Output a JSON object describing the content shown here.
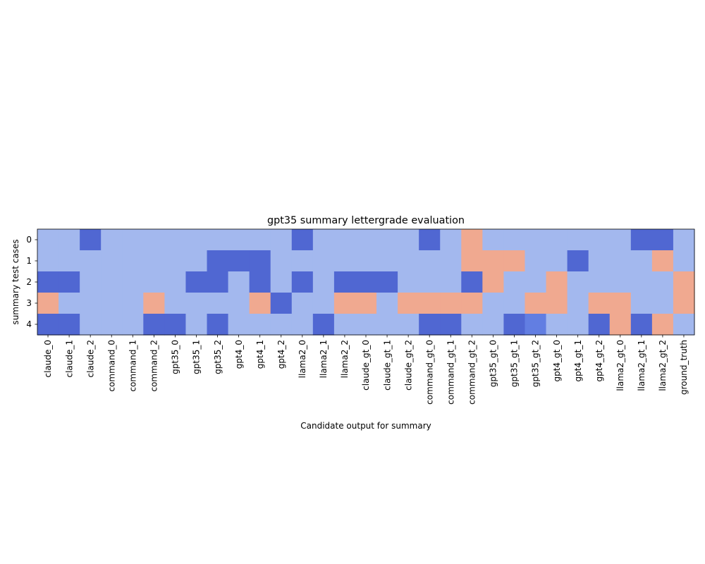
{
  "chart_data": {
    "type": "heatmap",
    "title": "gpt35 summary lettergrade evaluation",
    "xlabel": "Candidate output for summary",
    "ylabel": "summary test cases",
    "x_categories": [
      "claude_0",
      "claude_1",
      "claude_2",
      "command_0",
      "command_1",
      "command_2",
      "gpt35_0",
      "gpt35_1",
      "gpt35_2",
      "gpt4_0",
      "gpt4_1",
      "gpt4_2",
      "llama2_0",
      "llama2_1",
      "llama2_2",
      "claude_gt_0",
      "claude_gt_1",
      "claude_gt_2",
      "command_gt_0",
      "command_gt_1",
      "command_gt_2",
      "gpt35_gt_0",
      "gpt35_gt_1",
      "gpt35_gt_2",
      "gpt4_gt_0",
      "gpt4_gt_1",
      "gpt4_gt_2",
      "llama2_gt_0",
      "llama2_gt_1",
      "llama2_gt_2",
      "ground_truth"
    ],
    "y_categories": [
      "0",
      "1",
      "2",
      "3",
      "4"
    ],
    "colormap": "coolwarm",
    "value_range": [
      0,
      1
    ],
    "grid": false,
    "values": [
      [
        0.35,
        0.35,
        0.08,
        0.35,
        0.35,
        0.35,
        0.35,
        0.35,
        0.35,
        0.35,
        0.35,
        0.35,
        0.08,
        0.35,
        0.35,
        0.35,
        0.35,
        0.35,
        0.08,
        0.35,
        0.7,
        0.35,
        0.35,
        0.35,
        0.35,
        0.35,
        0.35,
        0.35,
        0.08,
        0.08,
        0.35
      ],
      [
        0.35,
        0.35,
        0.35,
        0.35,
        0.35,
        0.35,
        0.35,
        0.35,
        0.08,
        0.08,
        0.08,
        0.35,
        0.35,
        0.35,
        0.35,
        0.35,
        0.35,
        0.35,
        0.35,
        0.35,
        0.7,
        0.7,
        0.7,
        0.35,
        0.35,
        0.08,
        0.35,
        0.35,
        0.35,
        0.7,
        0.35
      ],
      [
        0.08,
        0.08,
        0.35,
        0.35,
        0.35,
        0.35,
        0.35,
        0.08,
        0.08,
        0.35,
        0.08,
        0.35,
        0.08,
        0.35,
        0.08,
        0.08,
        0.08,
        0.35,
        0.35,
        0.35,
        0.08,
        0.7,
        0.35,
        0.35,
        0.7,
        0.35,
        0.35,
        0.35,
        0.35,
        0.35,
        0.7
      ],
      [
        0.7,
        0.35,
        0.35,
        0.35,
        0.35,
        0.7,
        0.35,
        0.35,
        0.35,
        0.35,
        0.7,
        0.08,
        0.35,
        0.35,
        0.7,
        0.7,
        0.35,
        0.7,
        0.7,
        0.7,
        0.7,
        0.35,
        0.35,
        0.7,
        0.7,
        0.35,
        0.7,
        0.7,
        0.35,
        0.35,
        0.7
      ],
      [
        0.08,
        0.08,
        0.35,
        0.35,
        0.35,
        0.08,
        0.08,
        0.35,
        0.08,
        0.35,
        0.35,
        0.35,
        0.35,
        0.08,
        0.35,
        0.35,
        0.35,
        0.35,
        0.08,
        0.08,
        0.35,
        0.35,
        0.08,
        0.15,
        0.35,
        0.35,
        0.08,
        0.7,
        0.08,
        0.7,
        0.35
      ]
    ]
  }
}
